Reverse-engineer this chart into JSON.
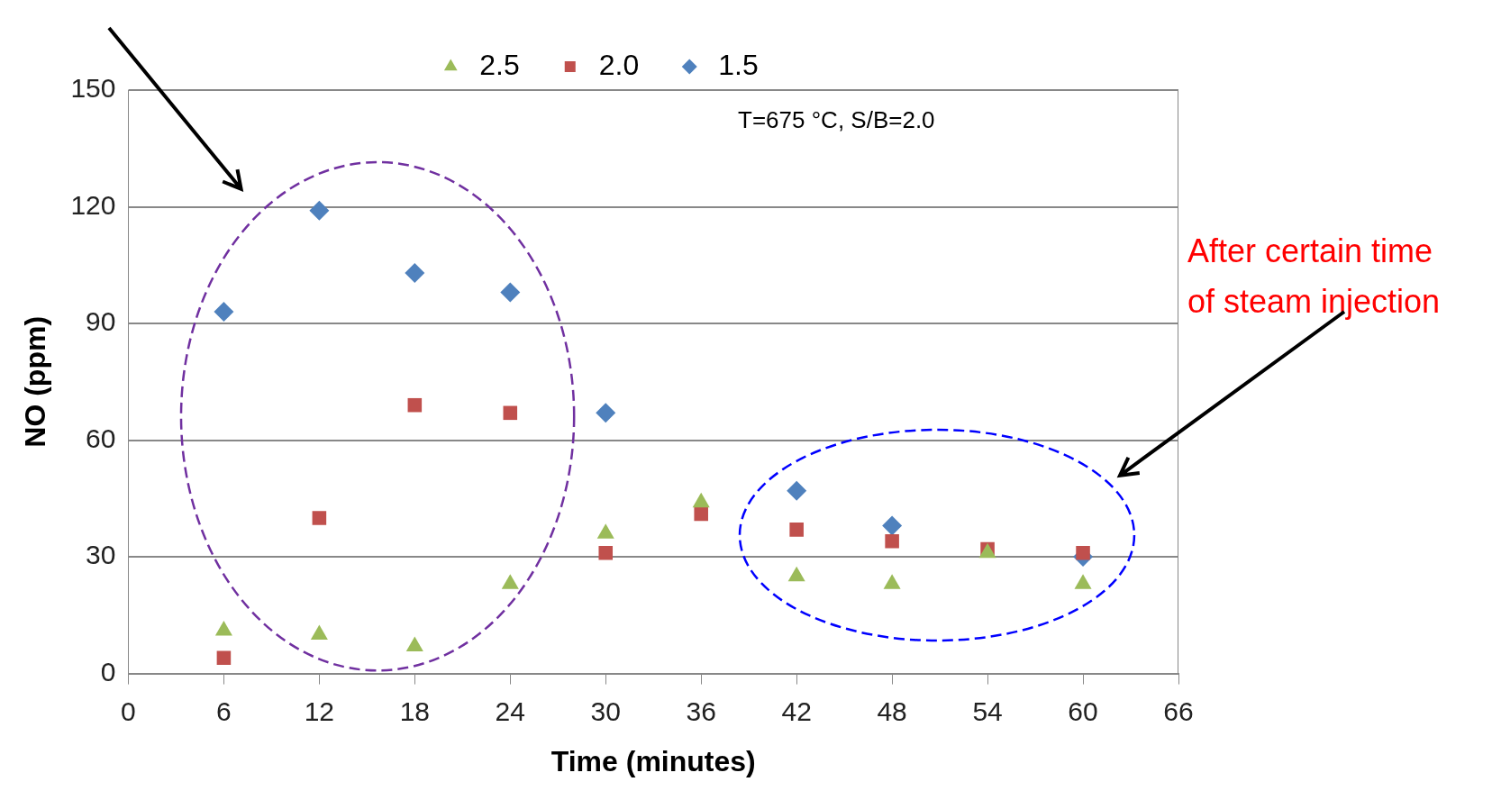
{
  "chart_data": {
    "type": "scatter",
    "xlabel": "Time (minutes)",
    "ylabel": "NO (ppm)",
    "x": [
      6,
      12,
      18,
      24,
      30,
      36,
      42,
      48,
      54,
      60
    ],
    "series": [
      {
        "name": "1.5",
        "color": "#4f81bd",
        "marker": "diamond",
        "values": [
          93,
          119,
          103,
          98,
          67,
          null,
          47,
          38,
          null,
          30
        ]
      },
      {
        "name": "2.0",
        "color": "#c0504d",
        "marker": "square",
        "values": [
          4,
          40,
          69,
          67,
          31,
          41,
          37,
          34,
          32,
          31
        ]
      },
      {
        "name": "2.5",
        "color": "#9bbb59",
        "marker": "triangle",
        "values": [
          11,
          10,
          7,
          23,
          36,
          44,
          25,
          23,
          31,
          23
        ]
      }
    ],
    "xlim": [
      0,
      66
    ],
    "xticks": [
      0,
      6,
      12,
      18,
      24,
      30,
      36,
      42,
      48,
      54,
      60,
      66
    ],
    "ylim": [
      0,
      150
    ],
    "yticks": [
      0,
      30,
      60,
      90,
      120,
      150
    ],
    "grid": "y",
    "legend": "top",
    "annotations": [
      "T=675 °C, S/B=2.0",
      "After certain time of steam injection"
    ]
  }
}
